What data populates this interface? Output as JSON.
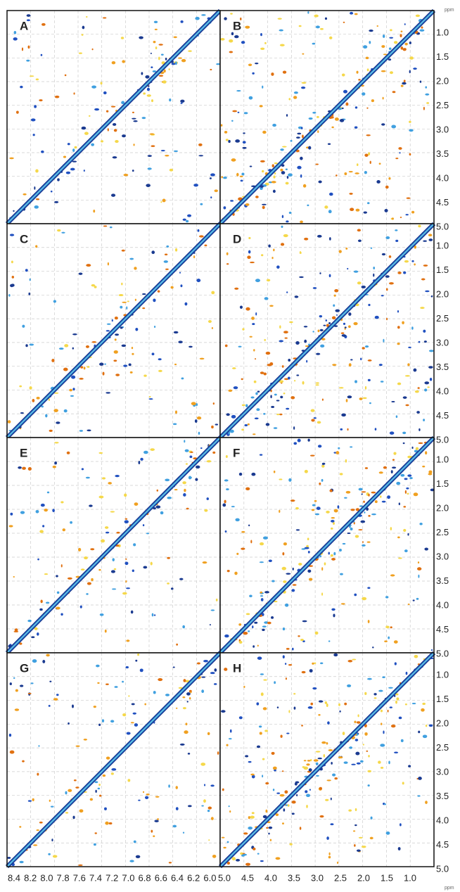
{
  "panels": [
    {
      "label": "A"
    },
    {
      "label": "B"
    },
    {
      "label": "C"
    },
    {
      "label": "D"
    },
    {
      "label": "E"
    },
    {
      "label": "F"
    },
    {
      "label": "G"
    },
    {
      "label": "H"
    }
  ],
  "right_axis": {
    "unit": "ppm",
    "ticks": [
      "1.0",
      "1.5",
      "2.0",
      "2.5",
      "3.0",
      "3.5",
      "4.0",
      "4.5",
      "5.0"
    ]
  },
  "bottom_axis": {
    "unit": "ppm",
    "left_ticks": [
      "8.4",
      "8.2",
      "8.0",
      "7.8",
      "7.6",
      "7.4",
      "7.2",
      "7.0",
      "6.8",
      "6.6",
      "6.4",
      "6.2",
      "6.0"
    ],
    "right_ticks": [
      "5.0",
      "4.5",
      "4.0",
      "3.5",
      "3.0",
      "2.5",
      "2.0",
      "1.5",
      "1.0"
    ]
  }
}
